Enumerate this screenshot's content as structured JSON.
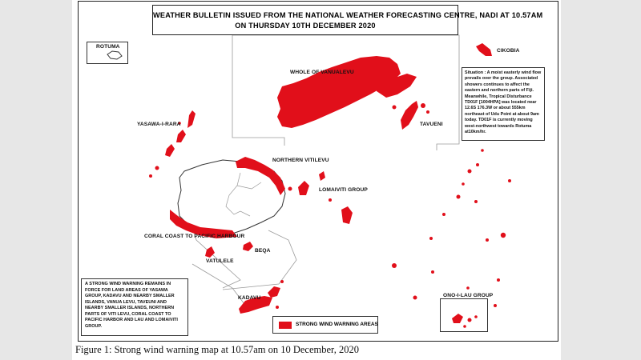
{
  "bulletin": {
    "line1": "WEATHER BULLETIN  ISSUED FROM THE NATIONAL WEATHER FORECASTING CENTRE, NADI AT 10.57AM",
    "line2": "ON THURSDAY 10TH DECEMBER 2020"
  },
  "labels": {
    "rotuma": "ROTUMA",
    "cikobia": "CIKOBIA",
    "vanualevu": "WHOLE OF VANUALEVU",
    "tavueni": "TAVUENI",
    "yasawa": "YASAWA-I-RARA",
    "northern_vitilevu": "NORTHERN VITILEVU",
    "lomaiviti": "LOMAIVITI GROUP",
    "coral_coast": "CORAL COAST TO PACIFIC HARBOUR",
    "beqa": "BEQA",
    "vatulele": "VATULELE",
    "kadavu": "KADAVU",
    "ono_i_lau": "ONO-I-LAU GROUP"
  },
  "situation": {
    "heading": "Situation :",
    "text": "A moist easterly wind flow prevails over the group. Associated showers continues to affect the eastern and northern parts of Fiji. Meanwhile, Tropical Disturbance TD01F [1004HPA] was located near 12.6S 176.3W or about 555km northeast of Udu Point at about 9am today. TD01F is currently moving west-northwest towards Rotuma at10km/hr."
  },
  "warning": {
    "text": "A STRONG WIND WARNING REMAINS IN FORCE FOR LAND AREAS OF YASAWA GROUP, KADAVU AND NEARBY SMALLER ISLANDS, VANUA LEVU, TAVEUNI AND NEARBY SMALLER ISLANDS, NORTHERN PARTS OF VITI LEVU, CORAL COAST TO PACIFIC HARBOR AND LAU AND LOMAIVITI GROUP."
  },
  "legend": {
    "label": "STRONG WIND WARNING AREAS",
    "color": "#e10f1a"
  },
  "caption": "Figure 1: Strong wind warning map at 10.57am on 10 December, 2020"
}
